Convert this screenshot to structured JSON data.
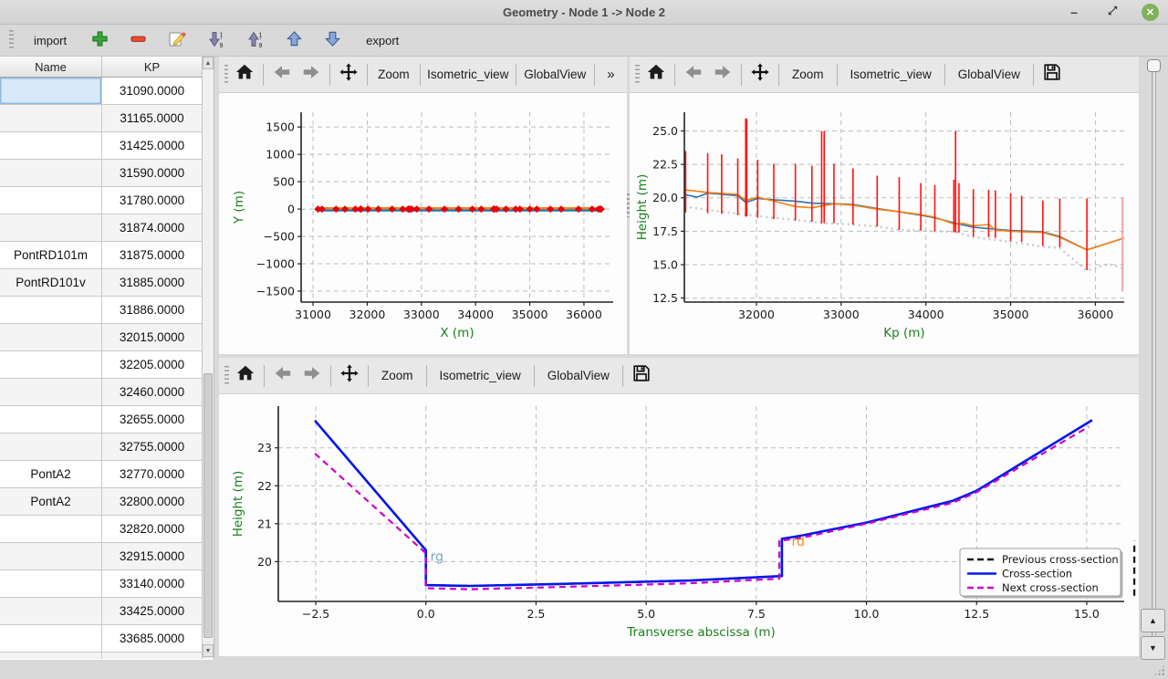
{
  "window": {
    "title": "Geometry - Node 1 -> Node 2",
    "minimize_glyph": "–",
    "close_glyph": "✕"
  },
  "main_toolbar": {
    "import_label": "import",
    "export_label": "export"
  },
  "plot_toolbar": {
    "zoom_label": "Zoom",
    "isometric_label": "Isometric_view",
    "globalview_label": "GlobalView",
    "overflow_glyph": "»"
  },
  "slider": {
    "up_glyph": "▲",
    "down_glyph": "▼"
  },
  "scrollbar": {
    "up_glyph": "▲",
    "down_glyph": "▼"
  },
  "colors": {
    "axis_label_green": "#1a7f1a",
    "cross_section_red": "#ff1212",
    "profile_blue": "#1f77b4",
    "profile_orange": "#ff7f0e",
    "section_blue": "#0018e8",
    "section_magenta": "#cc00cc"
  },
  "table": {
    "columns": [
      "Name",
      "KP"
    ],
    "rows": [
      {
        "name": "",
        "kp": "31090.0000",
        "selected": true
      },
      {
        "name": "",
        "kp": "31165.0000"
      },
      {
        "name": "",
        "kp": "31425.0000"
      },
      {
        "name": "",
        "kp": "31590.0000"
      },
      {
        "name": "",
        "kp": "31780.0000"
      },
      {
        "name": "",
        "kp": "31874.0000"
      },
      {
        "name": "PontRD101m",
        "kp": "31875.0000"
      },
      {
        "name": "PontRD101v",
        "kp": "31885.0000"
      },
      {
        "name": "",
        "kp": "31886.0000"
      },
      {
        "name": "",
        "kp": "32015.0000"
      },
      {
        "name": "",
        "kp": "32205.0000"
      },
      {
        "name": "",
        "kp": "32460.0000"
      },
      {
        "name": "",
        "kp": "32655.0000"
      },
      {
        "name": "",
        "kp": "32755.0000"
      },
      {
        "name": "PontA2",
        "kp": "32770.0000"
      },
      {
        "name": "PontA2",
        "kp": "32800.0000"
      },
      {
        "name": "",
        "kp": "32820.0000"
      },
      {
        "name": "",
        "kp": "32915.0000"
      },
      {
        "name": "",
        "kp": "33140.0000"
      },
      {
        "name": "",
        "kp": "33425.0000"
      },
      {
        "name": "",
        "kp": "33685.0000"
      },
      {
        "name": "",
        "kp": ""
      }
    ]
  },
  "chart_data": [
    {
      "type": "line",
      "title": "",
      "xlabel": "X (m)",
      "ylabel": "Y (m)",
      "xlim": [
        30780,
        36540
      ],
      "ylim": [
        -1700,
        1770
      ],
      "xticks": [
        31000,
        32000,
        33000,
        34000,
        35000,
        36000
      ],
      "xtick_labels": [
        "31000",
        "32000",
        "33000",
        "34000",
        "35000",
        "36000"
      ],
      "yticks": [
        -1500,
        -1000,
        -500,
        0,
        500,
        1000,
        1500
      ],
      "ytick_labels": [
        "−1500",
        "−1000",
        "−500",
        "0",
        "500",
        "1000",
        "1500"
      ],
      "grid": true,
      "series": [
        {
          "name": "river-axis-blue",
          "color": "#1f77b4",
          "width": 2.4,
          "points": [
            [
              31090,
              -25
            ],
            [
              36320,
              -25
            ]
          ]
        },
        {
          "name": "river-axis-orange",
          "color": "#ff7f0e",
          "width": 2.4,
          "points": [
            [
              31090,
              15
            ],
            [
              36320,
              15
            ]
          ]
        }
      ],
      "markers": {
        "name": "cross-section-positions",
        "color": "#e8000b",
        "shape": "diamond",
        "size": 4,
        "y": 0,
        "x": [
          31090,
          31165,
          31425,
          31590,
          31780,
          31874,
          31886,
          32015,
          32205,
          32460,
          32655,
          32755,
          32770,
          32800,
          32820,
          32915,
          33140,
          33425,
          33685,
          33940,
          34105,
          34330,
          34350,
          34390,
          34560,
          34740,
          34820,
          35000,
          35130,
          35380,
          35580,
          35900,
          36150,
          36270,
          36300,
          36320
        ]
      }
    },
    {
      "type": "line",
      "title": "",
      "xlabel": "Kp (m)",
      "ylabel": "Height (m)",
      "xlim": [
        31150,
        36340
      ],
      "ylim": [
        12.2,
        26.4
      ],
      "xticks": [
        32000,
        33000,
        34000,
        35000,
        36000
      ],
      "xtick_labels": [
        "32000",
        "33000",
        "34000",
        "35000",
        "36000"
      ],
      "yticks": [
        12.5,
        15.0,
        17.5,
        20.0,
        22.5,
        25.0
      ],
      "ytick_labels": [
        "12.5",
        "15.0",
        "17.5",
        "20.0",
        "22.5",
        "25.0"
      ],
      "grid": true,
      "series": [
        {
          "name": "bottom-dotted-gray",
          "color": "#c9c9c9",
          "width": 2.4,
          "dash": "2,4",
          "points": [
            [
              31150,
              19.35
            ],
            [
              31425,
              19.1
            ],
            [
              31875,
              18.75
            ],
            [
              32205,
              18.5
            ],
            [
              32460,
              18.35
            ],
            [
              32820,
              18.1
            ],
            [
              33140,
              18.0
            ],
            [
              33425,
              17.85
            ],
            [
              33685,
              17.6
            ],
            [
              33940,
              17.55
            ],
            [
              34105,
              17.5
            ],
            [
              34350,
              17.45
            ],
            [
              34560,
              17.05
            ],
            [
              34820,
              16.85
            ],
            [
              35000,
              16.7
            ],
            [
              35380,
              16.35
            ],
            [
              35580,
              16.25
            ],
            [
              35900,
              14.55
            ],
            [
              36150,
              15.05
            ],
            [
              36340,
              14.7
            ]
          ]
        },
        {
          "name": "left-bank-blue",
          "color": "#1f77b4",
          "width": 1.6,
          "points": [
            [
              31150,
              20.25
            ],
            [
              31300,
              20.05
            ],
            [
              31425,
              20.35
            ],
            [
              31780,
              20.15
            ],
            [
              31875,
              19.65
            ],
            [
              32015,
              19.95
            ],
            [
              32205,
              19.85
            ],
            [
              32460,
              19.75
            ],
            [
              32655,
              19.6
            ],
            [
              32915,
              19.55
            ],
            [
              33140,
              19.5
            ],
            [
              33425,
              19.2
            ],
            [
              33685,
              18.95
            ],
            [
              33940,
              18.7
            ],
            [
              34105,
              18.5
            ],
            [
              34350,
              18.1
            ],
            [
              34560,
              17.8
            ],
            [
              34820,
              17.65
            ],
            [
              35000,
              17.55
            ],
            [
              35380,
              17.45
            ],
            [
              35580,
              17.1
            ],
            [
              35900,
              16.1
            ],
            [
              36340,
              17.0
            ]
          ]
        },
        {
          "name": "right-bank-orange",
          "color": "#ff7f0e",
          "width": 1.6,
          "points": [
            [
              31150,
              20.6
            ],
            [
              31425,
              20.4
            ],
            [
              31780,
              20.25
            ],
            [
              31875,
              19.8
            ],
            [
              32015,
              20.05
            ],
            [
              32205,
              19.75
            ],
            [
              32460,
              19.35
            ],
            [
              32655,
              19.25
            ],
            [
              32915,
              19.55
            ],
            [
              33140,
              19.45
            ],
            [
              33425,
              19.15
            ],
            [
              33685,
              18.95
            ],
            [
              33940,
              18.75
            ],
            [
              34105,
              18.55
            ],
            [
              34350,
              18.0
            ],
            [
              34440,
              18.1
            ],
            [
              34560,
              17.9
            ],
            [
              34740,
              18.0
            ],
            [
              34820,
              17.6
            ],
            [
              35000,
              17.5
            ],
            [
              35380,
              17.4
            ],
            [
              35580,
              17.05
            ],
            [
              35900,
              16.1
            ],
            [
              36340,
              17.0
            ]
          ]
        }
      ],
      "red_color": "#ff1212",
      "red_verticals": [
        [
          31165,
          18.9,
          23.5
        ],
        [
          31425,
          18.85,
          23.35
        ],
        [
          31590,
          18.8,
          23.25
        ],
        [
          31780,
          18.7,
          22.95
        ],
        [
          31874,
          18.6,
          25.95
        ],
        [
          31886,
          18.6,
          25.9
        ],
        [
          32015,
          18.5,
          22.85
        ],
        [
          32205,
          18.4,
          22.55
        ],
        [
          32460,
          18.3,
          22.55
        ],
        [
          32655,
          18.2,
          22.4
        ],
        [
          32770,
          18.1,
          25.0
        ],
        [
          32800,
          18.1,
          25.0
        ],
        [
          32915,
          18.1,
          22.55
        ],
        [
          33140,
          18.0,
          22.2
        ],
        [
          33425,
          17.85,
          21.65
        ],
        [
          33685,
          17.6,
          21.55
        ],
        [
          33940,
          17.55,
          21.1
        ],
        [
          34105,
          17.5,
          20.95
        ],
        [
          34330,
          17.45,
          21.35
        ],
        [
          34350,
          17.4,
          25.0
        ],
        [
          34390,
          17.4,
          21.1
        ],
        [
          34560,
          17.1,
          20.65
        ],
        [
          34740,
          17.05,
          20.6
        ],
        [
          34820,
          17.0,
          20.55
        ],
        [
          35000,
          16.75,
          20.35
        ],
        [
          35130,
          16.7,
          20.15
        ],
        [
          35380,
          16.4,
          19.8
        ],
        [
          35580,
          16.3,
          19.95
        ],
        [
          35900,
          14.6,
          19.95
        ]
      ],
      "clipped_marks": [
        {
          "x": 36320,
          "y0": 13.0,
          "y1": 20.0,
          "color": "#f2a6a6",
          "width": 2
        }
      ]
    },
    {
      "type": "line",
      "title": "",
      "xlabel": "Transverse abscissa (m)",
      "ylabel": "Height (m)",
      "xlim": [
        -3.35,
        15.85
      ],
      "ylim": [
        18.95,
        24.1
      ],
      "xticks": [
        -2.5,
        0,
        2.5,
        5,
        7.5,
        10,
        12.5,
        15
      ],
      "xtick_labels": [
        "−2.5",
        "0.0",
        "2.5",
        "5.0",
        "7.5",
        "10.0",
        "12.5",
        "15.0"
      ],
      "yticks": [
        20,
        21,
        22,
        23
      ],
      "ytick_labels": [
        "20",
        "21",
        "22",
        "23"
      ],
      "grid": true,
      "series": [
        {
          "name": "previous-cross-section",
          "color": "#111111",
          "width": 2.2,
          "dash": "7,5",
          "points": [
            [
              -2.52,
              23.72
            ],
            [
              0,
              20.3
            ],
            [
              0,
              19.38
            ],
            [
              1.0,
              19.36
            ],
            [
              3.0,
              19.41
            ],
            [
              6.0,
              19.5
            ],
            [
              8.08,
              19.62
            ],
            [
              8.08,
              20.6
            ],
            [
              8.5,
              20.68
            ],
            [
              10.0,
              21.03
            ],
            [
              11.95,
              21.6
            ],
            [
              12.5,
              21.87
            ],
            [
              15.12,
              23.73
            ]
          ]
        },
        {
          "name": "cross-section",
          "color": "#0018e8",
          "width": 2.6,
          "points": [
            [
              -2.52,
              23.72
            ],
            [
              0,
              20.3
            ],
            [
              0,
              19.38
            ],
            [
              1.0,
              19.36
            ],
            [
              3.0,
              19.41
            ],
            [
              6.0,
              19.5
            ],
            [
              8.08,
              19.62
            ],
            [
              8.08,
              20.6
            ],
            [
              8.5,
              20.68
            ],
            [
              10.0,
              21.03
            ],
            [
              11.95,
              21.6
            ],
            [
              12.5,
              21.87
            ],
            [
              15.12,
              23.73
            ]
          ]
        },
        {
          "name": "next-cross-section",
          "color": "#cc00cc",
          "width": 2.2,
          "dash": "7,5",
          "points": [
            [
              -2.52,
              22.85
            ],
            [
              0,
              20.22
            ],
            [
              0,
              19.3
            ],
            [
              1.0,
              19.27
            ],
            [
              3.0,
              19.33
            ],
            [
              6.0,
              19.43
            ],
            [
              8.02,
              19.55
            ],
            [
              8.02,
              20.55
            ],
            [
              8.5,
              20.62
            ],
            [
              10.0,
              21.0
            ],
            [
              11.95,
              21.55
            ],
            [
              12.5,
              21.83
            ],
            [
              15.05,
              23.56
            ]
          ]
        }
      ],
      "annotations": [
        {
          "text": "rg",
          "x": 0.1,
          "y": 20.02,
          "color": "#74a9cf"
        },
        {
          "text": "rd",
          "x": 8.3,
          "y": 20.42,
          "color": "#ff8c1a"
        }
      ],
      "legend": {
        "position": "lower right",
        "entries": [
          {
            "label": "Previous cross-section",
            "color": "#111111",
            "dash": true
          },
          {
            "label": "Cross-section",
            "color": "#0018e8",
            "dash": false
          },
          {
            "label": "Next cross-section",
            "color": "#cc00cc",
            "dash": true
          }
        ]
      },
      "clipped_marks": [
        {
          "x": 16.08,
          "y0": 19.1,
          "y1": 20.55,
          "color": "#111111",
          "width": 2.2,
          "dash": "7,5"
        }
      ]
    }
  ]
}
